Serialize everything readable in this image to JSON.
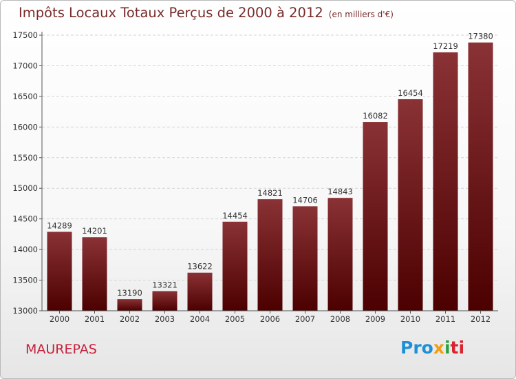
{
  "header": {
    "title": "Impôts Locaux Totaux Perçus de 2000 à 2012",
    "unit": "(en milliers d'€)"
  },
  "footer": {
    "city": "MAUREPAS",
    "logo": [
      "Pro",
      "x",
      "i",
      "ti"
    ]
  },
  "colors": {
    "bar_top": "#8a3236",
    "bar_bottom": "#4c0000",
    "title": "#7a2a2a",
    "city": "#c8203a"
  },
  "chart_data": {
    "type": "bar",
    "title": "Impôts Locaux Totaux Perçus de 2000 à 2012",
    "subtitle": "(en milliers d'€)",
    "categories": [
      "2000",
      "2001",
      "2002",
      "2003",
      "2004",
      "2005",
      "2006",
      "2007",
      "2008",
      "2009",
      "2010",
      "2011",
      "2012"
    ],
    "values": [
      14289,
      14201,
      13190,
      13321,
      13622,
      14454,
      14821,
      14706,
      14843,
      16082,
      16454,
      17219,
      17380
    ],
    "ylim": [
      13000,
      17500
    ],
    "yticks": [
      13000,
      13500,
      14000,
      14500,
      15000,
      15500,
      16000,
      16500,
      17000,
      17500
    ],
    "grid": true,
    "data_labels": true
  }
}
